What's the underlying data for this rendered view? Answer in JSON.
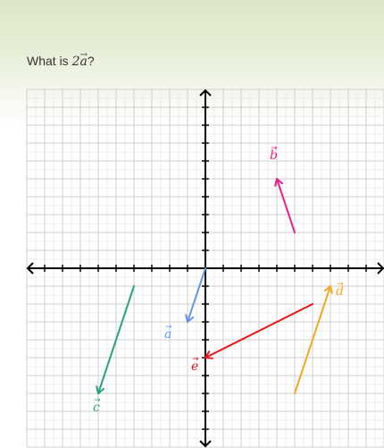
{
  "question": {
    "prefix": "What is ",
    "coefficient": "2",
    "vector_symbol": "a",
    "vector_arrow": "→",
    "suffix": "?"
  },
  "plane": {
    "x_range": [
      -10,
      10
    ],
    "y_range": [
      -10,
      10
    ],
    "grid": true
  },
  "vectors": [
    {
      "id": "a",
      "label": "a",
      "arrow": "→",
      "color": "#6495ed",
      "from": [
        0,
        0
      ],
      "to": [
        -1,
        -3
      ]
    },
    {
      "id": "b",
      "label": "b",
      "arrow": "→",
      "color": "#e8208e",
      "from": [
        5,
        2
      ],
      "to": [
        4,
        5
      ]
    },
    {
      "id": "c",
      "label": "c",
      "arrow": "→",
      "color": "#28a17e",
      "from": [
        -4,
        -1
      ],
      "to": [
        -6,
        -7
      ]
    },
    {
      "id": "d",
      "label": "d",
      "arrow": "→",
      "color": "#f5a623",
      "from": [
        5,
        -7
      ],
      "to": [
        7,
        -1
      ]
    },
    {
      "id": "e",
      "label": "e",
      "arrow": "→",
      "color": "#e8141e",
      "from": [
        6,
        -2
      ],
      "to": [
        0,
        -5
      ]
    }
  ]
}
